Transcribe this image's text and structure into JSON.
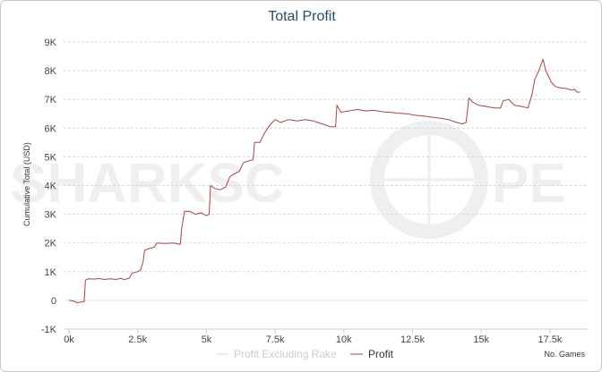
{
  "chart_data": {
    "type": "line",
    "title": "Total Profit",
    "xlabel": "No. Games",
    "ylabel": "Cumulative Total (USD)",
    "xlim": [
      0,
      18700
    ],
    "ylim": [
      -1000,
      9000
    ],
    "x_ticks": [
      {
        "value": 0,
        "label": "0k"
      },
      {
        "value": 2500,
        "label": "2.5k"
      },
      {
        "value": 5000,
        "label": "5k"
      },
      {
        "value": 7500,
        "label": "7.5k"
      },
      {
        "value": 10000,
        "label": "10k"
      },
      {
        "value": 12500,
        "label": "12.5k"
      },
      {
        "value": 15000,
        "label": "15k"
      },
      {
        "value": 17500,
        "label": "17.5k"
      }
    ],
    "y_ticks": [
      {
        "value": -1000,
        "label": "-1K"
      },
      {
        "value": 0,
        "label": "0"
      },
      {
        "value": 1000,
        "label": "1K"
      },
      {
        "value": 2000,
        "label": "2K"
      },
      {
        "value": 3000,
        "label": "3K"
      },
      {
        "value": 4000,
        "label": "4K"
      },
      {
        "value": 5000,
        "label": "5K"
      },
      {
        "value": 6000,
        "label": "6K"
      },
      {
        "value": 7000,
        "label": "7K"
      },
      {
        "value": 8000,
        "label": "8K"
      },
      {
        "value": 9000,
        "label": "9K"
      }
    ],
    "grid": true,
    "legend_position": "bottom-center",
    "watermark": "SHARKSCOPE",
    "series": [
      {
        "name": "Profit Excluding Rake",
        "color": "#d8d8d8",
        "visible": false,
        "points": []
      },
      {
        "name": "Profit",
        "color": "#a94442",
        "visible": true,
        "points": [
          [
            0,
            0
          ],
          [
            150,
            -20
          ],
          [
            300,
            -80
          ],
          [
            450,
            -60
          ],
          [
            550,
            -40
          ],
          [
            600,
            700
          ],
          [
            700,
            750
          ],
          [
            900,
            740
          ],
          [
            1100,
            760
          ],
          [
            1300,
            730
          ],
          [
            1500,
            750
          ],
          [
            1700,
            730
          ],
          [
            1900,
            770
          ],
          [
            2000,
            720
          ],
          [
            2200,
            780
          ],
          [
            2300,
            950
          ],
          [
            2500,
            1000
          ],
          [
            2600,
            1050
          ],
          [
            2700,
            1350
          ],
          [
            2750,
            1750
          ],
          [
            2900,
            1800
          ],
          [
            3100,
            1850
          ],
          [
            3200,
            2000
          ],
          [
            3500,
            1980
          ],
          [
            3800,
            2000
          ],
          [
            4050,
            1950
          ],
          [
            4100,
            2500
          ],
          [
            4200,
            3100
          ],
          [
            4400,
            3100
          ],
          [
            4600,
            3000
          ],
          [
            4800,
            3050
          ],
          [
            5000,
            2950
          ],
          [
            5100,
            3000
          ],
          [
            5150,
            4000
          ],
          [
            5300,
            3900
          ],
          [
            5500,
            3850
          ],
          [
            5700,
            3950
          ],
          [
            5850,
            4300
          ],
          [
            6000,
            4400
          ],
          [
            6200,
            4500
          ],
          [
            6350,
            4800
          ],
          [
            6500,
            4850
          ],
          [
            6700,
            4900
          ],
          [
            6750,
            5500
          ],
          [
            6950,
            5500
          ],
          [
            7100,
            5800
          ],
          [
            7300,
            6100
          ],
          [
            7400,
            6200
          ],
          [
            7500,
            6300
          ],
          [
            7700,
            6200
          ],
          [
            8000,
            6300
          ],
          [
            8300,
            6250
          ],
          [
            8600,
            6300
          ],
          [
            8900,
            6250
          ],
          [
            9200,
            6150
          ],
          [
            9500,
            6050
          ],
          [
            9700,
            6050
          ],
          [
            9750,
            6800
          ],
          [
            9900,
            6550
          ],
          [
            10200,
            6600
          ],
          [
            10500,
            6650
          ],
          [
            10800,
            6600
          ],
          [
            11100,
            6620
          ],
          [
            11400,
            6570
          ],
          [
            11700,
            6550
          ],
          [
            12000,
            6520
          ],
          [
            12300,
            6500
          ],
          [
            12600,
            6450
          ],
          [
            12900,
            6420
          ],
          [
            13200,
            6380
          ],
          [
            13500,
            6350
          ],
          [
            13800,
            6300
          ],
          [
            14100,
            6200
          ],
          [
            14300,
            6150
          ],
          [
            14450,
            6200
          ],
          [
            14550,
            7050
          ],
          [
            14700,
            6900
          ],
          [
            14900,
            6800
          ],
          [
            15200,
            6750
          ],
          [
            15500,
            6700
          ],
          [
            15700,
            6700
          ],
          [
            15800,
            6950
          ],
          [
            16000,
            7000
          ],
          [
            16200,
            6800
          ],
          [
            16500,
            6750
          ],
          [
            16700,
            6700
          ],
          [
            16850,
            7200
          ],
          [
            16950,
            7700
          ],
          [
            17050,
            7900
          ],
          [
            17150,
            8150
          ],
          [
            17250,
            8400
          ],
          [
            17350,
            8000
          ],
          [
            17450,
            7800
          ],
          [
            17550,
            7600
          ],
          [
            17700,
            7450
          ],
          [
            17900,
            7400
          ],
          [
            18100,
            7380
          ],
          [
            18300,
            7320
          ],
          [
            18400,
            7350
          ],
          [
            18500,
            7250
          ],
          [
            18600,
            7260
          ]
        ]
      }
    ]
  }
}
